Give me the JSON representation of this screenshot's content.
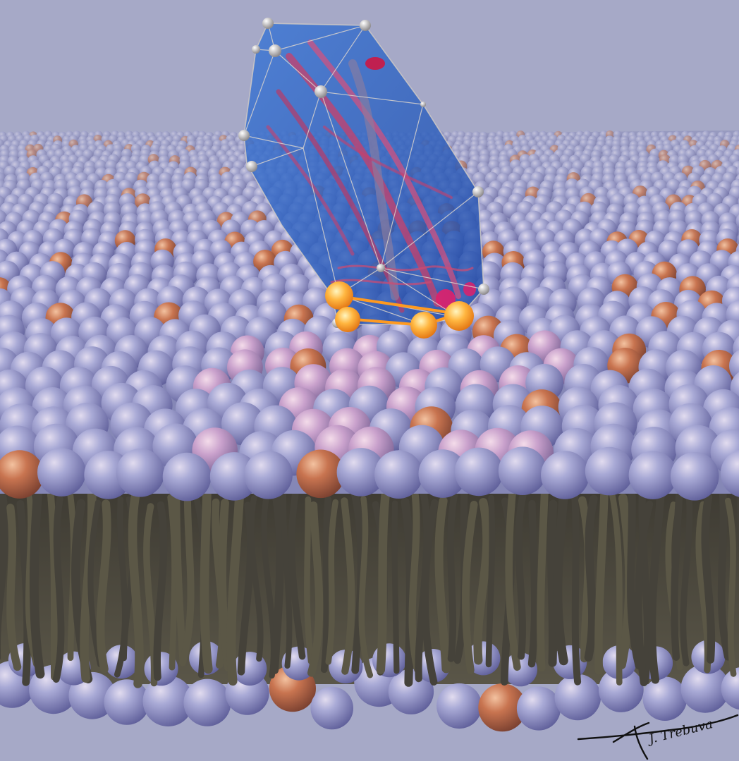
{
  "image": {
    "subject": "lipid-bilayer-membrane-with-membrane-protein-polyhedron",
    "colors": {
      "background": "#a6a9c7",
      "lipid_head": "#8f91c4",
      "lipid_head_highlight": "#d6c7dc",
      "lipid_head_pink": "#c8a0c8",
      "lipid_head_orange": "#c8704a",
      "lipid_tail": "#4d4a3c",
      "protein_hull": "#2f5fc2",
      "protein_ribbon": "#c8406a",
      "anchor_glow": "#ffb030",
      "signature": "#111111"
    },
    "icons": [
      "signature-mark"
    ]
  },
  "signature": {
    "text": "J. Trebuva"
  }
}
